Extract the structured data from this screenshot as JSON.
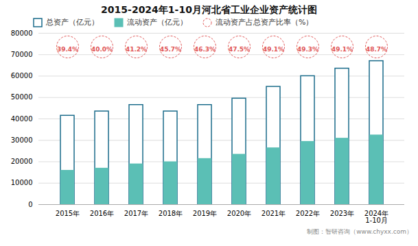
{
  "chart_data": {
    "type": "bar",
    "title": "2015-2024年1-10月河北省工业企业资产统计图",
    "categories": [
      "2015年",
      "2016年",
      "2017年",
      "2018年",
      "2019年",
      "2020年",
      "2021年",
      "2022年",
      "2023年",
      "2024年\n1-10月"
    ],
    "series": [
      {
        "name": "总资产（亿元）",
        "type": "bar",
        "color": "#1a6b8a",
        "values": [
          41500,
          43500,
          46500,
          43500,
          46500,
          49500,
          55000,
          60000,
          63500,
          67000
        ]
      },
      {
        "name": "流动资产（亿元）",
        "type": "bar",
        "color": "#5bbfb5",
        "values": [
          16000,
          17000,
          19000,
          20000,
          21500,
          23500,
          26500,
          29500,
          31000,
          32500
        ]
      },
      {
        "name": "流动资产占总资产比率（%）",
        "type": "text",
        "color": "#e05555",
        "marker": "circle",
        "line_style": "dashed",
        "values": [
          39.4,
          40.0,
          41.2,
          45.7,
          46.3,
          47.5,
          49.1,
          49.3,
          49.1,
          48.7
        ],
        "value_labels": [
          "39.4%",
          "40.0%",
          "41.2%",
          "45.7%",
          "46.3%",
          "47.5%",
          "49.1%",
          "49.3%",
          "49.1%",
          "48.7%"
        ]
      }
    ],
    "ylim": [
      0,
      80000
    ],
    "yticks": [
      0,
      10000,
      20000,
      30000,
      40000,
      50000,
      60000,
      70000,
      80000
    ],
    "grid": true,
    "annotations": [
      "制图：智研咨询（www.chyxx.com）"
    ]
  }
}
